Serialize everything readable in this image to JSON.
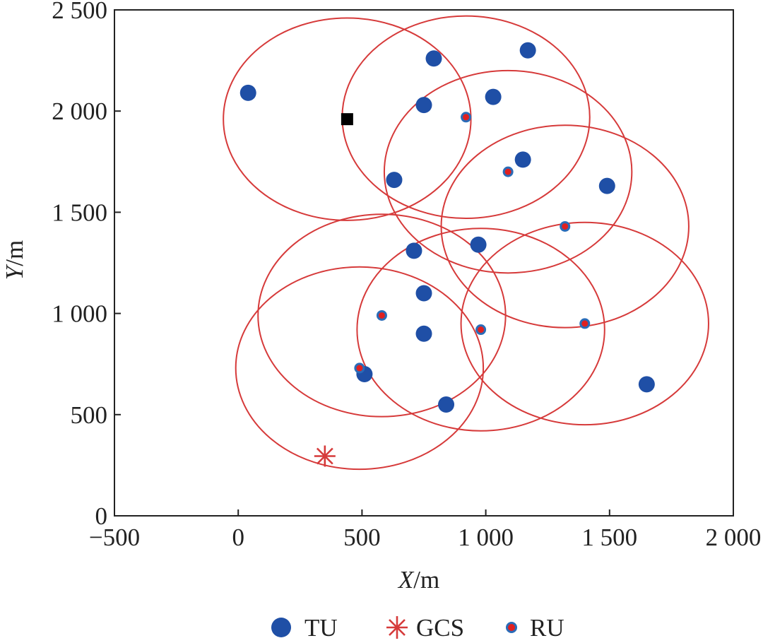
{
  "chart_data": {
    "type": "scatter",
    "title": "",
    "xlabel": {
      "italic": "X",
      "unit": "/m"
    },
    "ylabel": {
      "italic": "Y",
      "unit": "/m"
    },
    "xlim": [
      -500,
      2000
    ],
    "ylim": [
      0,
      2500
    ],
    "x_ticks": [
      {
        "value": -500,
        "label": "−500"
      },
      {
        "value": 0,
        "label": "0"
      },
      {
        "value": 500,
        "label": "500"
      },
      {
        "value": 1000,
        "label": "1 000"
      },
      {
        "value": 1500,
        "label": "1 500"
      },
      {
        "value": 2000,
        "label": "2 000"
      }
    ],
    "y_ticks": [
      {
        "value": 0,
        "label": "0"
      },
      {
        "value": 500,
        "label": "500"
      },
      {
        "value": 1000,
        "label": "1 000"
      },
      {
        "value": 1500,
        "label": "1 500"
      },
      {
        "value": 2000,
        "label": "2 000"
      },
      {
        "value": 2500,
        "label": "2 500"
      }
    ],
    "grid": false,
    "legend_position": "bottom",
    "series": [
      {
        "name": "TU",
        "marker": "filled-circle",
        "color": "#1f4fa6",
        "points": [
          [
            40,
            2090
          ],
          [
            790,
            2260
          ],
          [
            1170,
            2300
          ],
          [
            750,
            2030
          ],
          [
            1030,
            2070
          ],
          [
            1150,
            1760
          ],
          [
            630,
            1660
          ],
          [
            1490,
            1630
          ],
          [
            710,
            1310
          ],
          [
            970,
            1340
          ],
          [
            750,
            1100
          ],
          [
            750,
            900
          ],
          [
            510,
            700
          ],
          [
            840,
            550
          ],
          [
            1650,
            650
          ]
        ]
      },
      {
        "name": "GCS",
        "marker": "asterisk",
        "color": "#d63a3a",
        "points": [
          [
            350,
            295
          ]
        ]
      },
      {
        "name": "RU",
        "marker": "red-dot-blue-ring",
        "color": "#e02020",
        "ring_color": "#2a6cb8",
        "points": [
          [
            920,
            1970
          ],
          [
            1090,
            1700
          ],
          [
            1320,
            1430
          ],
          [
            580,
            990
          ],
          [
            980,
            920
          ],
          [
            1400,
            950
          ],
          [
            490,
            730
          ]
        ]
      }
    ],
    "coverage_circles": {
      "color": "#d63a3a",
      "radius": 500,
      "centers": [
        [
          440,
          1960
        ],
        [
          920,
          1970
        ],
        [
          1090,
          1700
        ],
        [
          1320,
          1430
        ],
        [
          580,
          990
        ],
        [
          980,
          920
        ],
        [
          1400,
          950
        ],
        [
          490,
          730
        ]
      ]
    },
    "black_square": {
      "color": "#000000",
      "point": [
        440,
        1960
      ]
    }
  }
}
